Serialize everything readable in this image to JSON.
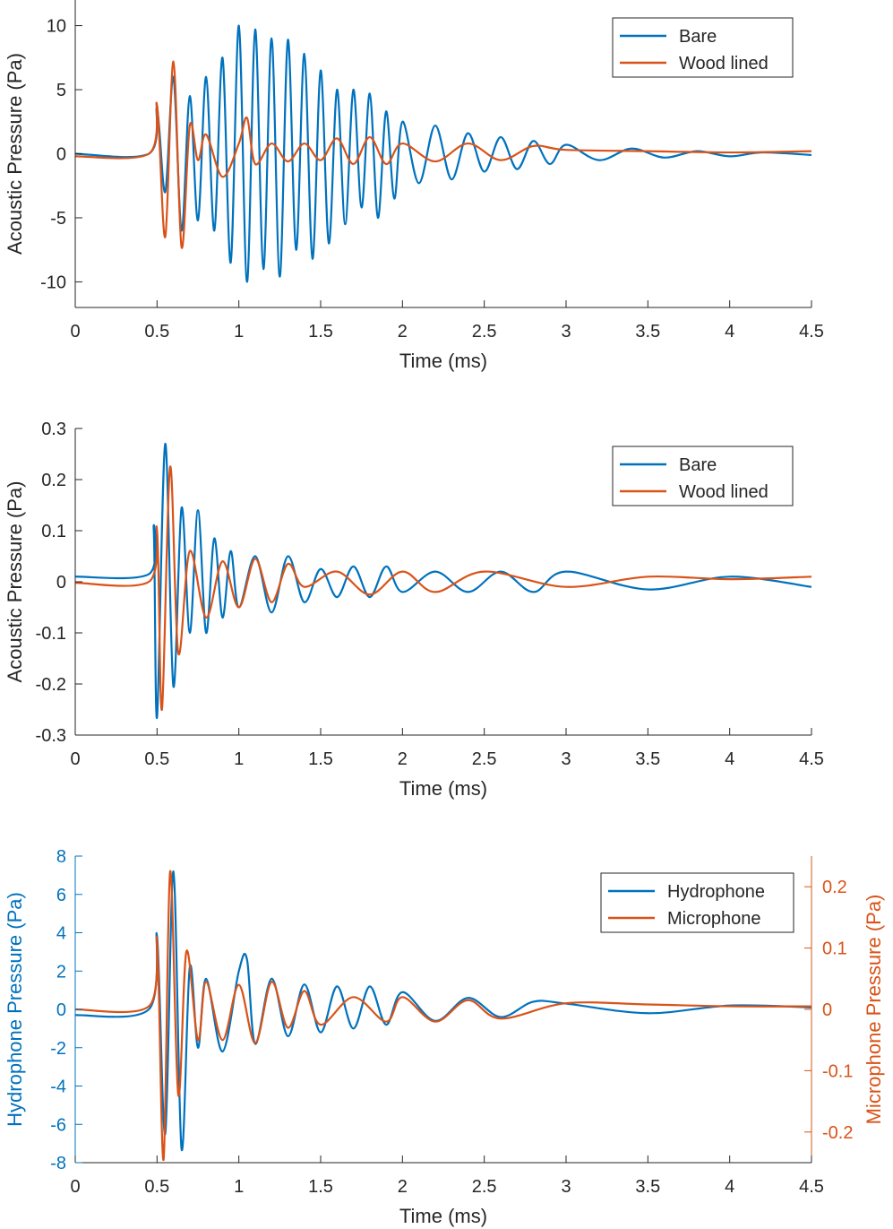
{
  "chart_data": [
    {
      "type": "line",
      "xlabel": "Time (ms)",
      "ylabel": "Acoustic Pressure (Pa)",
      "xlim": [
        0,
        4.5
      ],
      "ylim": [
        -12,
        12
      ],
      "xticks": [
        0,
        0.5,
        1,
        1.5,
        2,
        2.5,
        3,
        3.5,
        4,
        4.5
      ],
      "xtick_labels": [
        "0",
        "0.5",
        "1",
        "1.5",
        "2",
        "2.5",
        "3",
        "3.5",
        "4",
        "4.5"
      ],
      "yticks": [
        -10,
        -5,
        0,
        5,
        10
      ],
      "ytick_labels": [
        "-10",
        "-5",
        "0",
        "5",
        "10"
      ],
      "grid": false,
      "legend_position": "top-right",
      "series": [
        {
          "name": "Bare",
          "color": "#0072BD",
          "x": [
            0,
            0.45,
            0.5,
            0.55,
            0.6,
            0.65,
            0.7,
            0.75,
            0.8,
            0.85,
            0.9,
            0.95,
            1.0,
            1.05,
            1.1,
            1.15,
            1.2,
            1.25,
            1.3,
            1.35,
            1.4,
            1.45,
            1.5,
            1.55,
            1.6,
            1.65,
            1.7,
            1.75,
            1.8,
            1.85,
            1.9,
            1.95,
            2.0,
            2.1,
            2.2,
            2.3,
            2.4,
            2.5,
            2.6,
            2.7,
            2.8,
            2.9,
            3.0,
            3.2,
            3.4,
            3.6,
            3.8,
            4.0,
            4.2,
            4.5
          ],
          "y": [
            0,
            0,
            3.5,
            -3,
            6,
            -6,
            4.5,
            -5.2,
            6,
            -6,
            7.5,
            -8.5,
            10,
            -10,
            9.7,
            -9,
            9,
            -9.6,
            8.9,
            -7.5,
            7.8,
            -8.2,
            6.5,
            -7,
            5,
            -5.5,
            5,
            -4.2,
            4.7,
            -5,
            3.3,
            -3.5,
            2.5,
            -2.3,
            2.2,
            -2.0,
            1.6,
            -1.4,
            1.3,
            -1.2,
            1.0,
            -0.8,
            0.7,
            -0.5,
            0.4,
            -0.3,
            0.2,
            -0.2,
            0.1,
            -0.1
          ]
        },
        {
          "name": "Wood lined",
          "color": "#D95319",
          "x": [
            0,
            0.45,
            0.5,
            0.55,
            0.6,
            0.65,
            0.7,
            0.75,
            0.8,
            0.9,
            1.0,
            1.05,
            1.1,
            1.2,
            1.3,
            1.4,
            1.5,
            1.6,
            1.7,
            1.8,
            1.9,
            2.0,
            2.2,
            2.4,
            2.6,
            2.8,
            3.0,
            3.5,
            4.0,
            4.5
          ],
          "y": [
            -0.2,
            0,
            3.8,
            -6.5,
            7.2,
            -7.3,
            2.2,
            -0.5,
            1.5,
            -1.8,
            0.8,
            2.8,
            -0.8,
            0.8,
            -0.6,
            0.8,
            -0.5,
            1.2,
            -0.8,
            1.3,
            -0.8,
            0.8,
            -0.6,
            0.8,
            -0.5,
            0.6,
            0.3,
            0.2,
            0.1,
            0.2
          ]
        }
      ]
    },
    {
      "type": "line",
      "xlabel": "Time (ms)",
      "ylabel": "Acoustic Pressure (Pa)",
      "xlim": [
        0,
        4.5
      ],
      "ylim": [
        -0.3,
        0.3
      ],
      "xticks": [
        0,
        0.5,
        1,
        1.5,
        2,
        2.5,
        3,
        3.5,
        4,
        4.5
      ],
      "xtick_labels": [
        "0",
        "0.5",
        "1",
        "1.5",
        "2",
        "2.5",
        "3",
        "3.5",
        "4",
        "4.5"
      ],
      "yticks": [
        -0.3,
        -0.2,
        -0.1,
        0,
        0.1,
        0.2,
        0.3
      ],
      "ytick_labels": [
        "-0.3",
        "-0.2",
        "-0.1",
        "0",
        "0.1",
        "0.2",
        "0.3"
      ],
      "grid": false,
      "legend_position": "top-right",
      "series": [
        {
          "name": "Bare",
          "color": "#0072BD",
          "x": [
            0,
            0.45,
            0.48,
            0.5,
            0.55,
            0.6,
            0.65,
            0.7,
            0.75,
            0.8,
            0.85,
            0.9,
            0.95,
            1.0,
            1.1,
            1.2,
            1.3,
            1.4,
            1.5,
            1.6,
            1.7,
            1.8,
            1.9,
            2.0,
            2.2,
            2.4,
            2.6,
            2.8,
            3.0,
            3.5,
            4.0,
            4.5
          ],
          "y": [
            0.01,
            0.015,
            0.1,
            -0.265,
            0.27,
            -0.205,
            0.145,
            -0.1,
            0.14,
            -0.1,
            0.085,
            -0.07,
            0.06,
            -0.05,
            0.05,
            -0.06,
            0.05,
            -0.04,
            0.025,
            -0.03,
            0.03,
            -0.03,
            0.03,
            -0.02,
            0.02,
            -0.02,
            0.02,
            -0.02,
            0.02,
            -0.015,
            0.01,
            -0.01
          ]
        },
        {
          "name": "Wood lined",
          "color": "#D95319",
          "x": [
            0,
            0.45,
            0.5,
            0.53,
            0.58,
            0.63,
            0.7,
            0.8,
            0.9,
            1.0,
            1.1,
            1.2,
            1.3,
            1.4,
            1.6,
            1.8,
            2.0,
            2.2,
            2.5,
            3.0,
            3.5,
            4.0,
            4.5
          ],
          "y": [
            -0.002,
            0,
            0.1,
            -0.25,
            0.225,
            -0.14,
            0.06,
            -0.07,
            0.04,
            -0.05,
            0.045,
            -0.04,
            0.035,
            -0.01,
            0.02,
            -0.025,
            0.02,
            -0.02,
            0.02,
            -0.01,
            0.01,
            0.005,
            0.01
          ]
        }
      ]
    },
    {
      "type": "line",
      "xlabel": "Time (ms)",
      "ylabel": "Hydrophone Pressure (Pa)",
      "ylabel_right": "Microphone Pressure (Pa)",
      "xlim": [
        0,
        4.5
      ],
      "ylim": [
        -8,
        8
      ],
      "ylim_right": [
        -0.25,
        0.25
      ],
      "xticks": [
        0,
        0.5,
        1,
        1.5,
        2,
        2.5,
        3,
        3.5,
        4,
        4.5
      ],
      "xtick_labels": [
        "0",
        "0.5",
        "1",
        "1.5",
        "2",
        "2.5",
        "3",
        "3.5",
        "4",
        "4.5"
      ],
      "yticks": [
        -8,
        -6,
        -4,
        -2,
        0,
        2,
        4,
        6,
        8
      ],
      "ytick_labels": [
        "-8",
        "-6",
        "-4",
        "-2",
        "0",
        "2",
        "4",
        "6",
        "8"
      ],
      "yticks_right": [
        -0.2,
        -0.1,
        0,
        0.1,
        0.2
      ],
      "ytick_labels_right": [
        "-0.2",
        "-0.1",
        "0",
        "0.1",
        "0.2"
      ],
      "left_axis_color": "#0072BD",
      "right_axis_color": "#D95319",
      "grid": false,
      "legend_position": "top-right",
      "series": [
        {
          "name": "Hydrophone",
          "color": "#0072BD",
          "axis": "left",
          "x": [
            0,
            0.45,
            0.5,
            0.55,
            0.6,
            0.65,
            0.7,
            0.75,
            0.8,
            0.9,
            1.0,
            1.05,
            1.1,
            1.2,
            1.3,
            1.4,
            1.5,
            1.6,
            1.7,
            1.8,
            1.9,
            2.0,
            2.2,
            2.4,
            2.6,
            2.8,
            3.0,
            3.5,
            4.0,
            4.5
          ],
          "y": [
            -0.3,
            0,
            3.8,
            -6.5,
            7.2,
            -7.3,
            2.2,
            -2.0,
            1.6,
            -2.2,
            2.0,
            2.6,
            -1.8,
            1.6,
            -1.4,
            1.3,
            -1.2,
            1.2,
            -1.0,
            1.2,
            -0.8,
            0.9,
            -0.6,
            0.6,
            -0.4,
            0.4,
            0.3,
            -0.2,
            0.2,
            0.1
          ]
        },
        {
          "name": "Microphone",
          "color": "#D95319",
          "axis": "right",
          "x": [
            0,
            0.45,
            0.5,
            0.54,
            0.58,
            0.63,
            0.68,
            0.75,
            0.8,
            0.9,
            1.0,
            1.1,
            1.2,
            1.3,
            1.4,
            1.5,
            1.7,
            1.9,
            2.0,
            2.2,
            2.4,
            2.6,
            3.0,
            3.5,
            4.0,
            4.5
          ],
          "y": [
            0,
            0.005,
            0.11,
            -0.245,
            0.225,
            -0.14,
            0.095,
            -0.05,
            0.045,
            -0.05,
            0.04,
            -0.055,
            0.045,
            -0.03,
            0.03,
            -0.025,
            0.02,
            -0.02,
            0.02,
            -0.02,
            0.015,
            -0.015,
            0.01,
            0.008,
            0.005,
            0.005
          ]
        }
      ]
    }
  ]
}
